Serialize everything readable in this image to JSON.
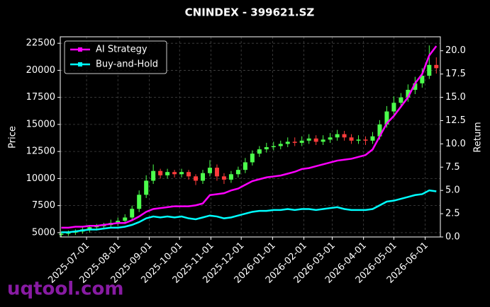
{
  "chart_data": {
    "type": "candlestick",
    "title": "CNINDEX - 399621.SZ",
    "ylabel": "Price",
    "y2label": "Return",
    "x": [
      "2025-06-06",
      "2025-06-13",
      "2025-06-20",
      "2025-06-27",
      "2025-07-04",
      "2025-07-11",
      "2025-07-18",
      "2025-07-25",
      "2025-08-01",
      "2025-08-08",
      "2025-08-15",
      "2025-08-22",
      "2025-08-29",
      "2025-09-05",
      "2025-09-12",
      "2025-09-19",
      "2025-09-26",
      "2025-10-03",
      "2025-10-10",
      "2025-10-17",
      "2025-10-24",
      "2025-10-31",
      "2025-11-07",
      "2025-11-14",
      "2025-11-21",
      "2025-11-28",
      "2025-12-05",
      "2025-12-12",
      "2025-12-19",
      "2025-12-26",
      "2026-01-02",
      "2026-01-09",
      "2026-01-16",
      "2026-01-23",
      "2026-01-30",
      "2026-02-06",
      "2026-02-13",
      "2026-02-20",
      "2026-02-27",
      "2026-03-06",
      "2026-03-13",
      "2026-03-20",
      "2026-03-27",
      "2026-04-03",
      "2026-04-10",
      "2026-04-17",
      "2026-04-24",
      "2026-05-01",
      "2026-05-08",
      "2026-05-15",
      "2026-05-22",
      "2026-05-29",
      "2026-06-05",
      "2026-06-12"
    ],
    "open": [
      4800,
      4900,
      5000,
      5100,
      5300,
      5500,
      5600,
      5700,
      5900,
      6100,
      6400,
      7200,
      8500,
      9800,
      10700,
      10300,
      10600,
      10400,
      10600,
      10200,
      9800,
      10500,
      11000,
      10200,
      9900,
      10400,
      10800,
      11500,
      12300,
      12700,
      12900,
      13000,
      13200,
      13400,
      13300,
      13500,
      13700,
      13400,
      13600,
      13800,
      14100,
      13800,
      13500,
      13600,
      13500,
      13900,
      15000,
      16200,
      17000,
      17500,
      18200,
      18800,
      19500,
      20500
    ],
    "high": [
      5100,
      5200,
      5300,
      5500,
      5700,
      5800,
      5900,
      6200,
      6400,
      6700,
      7500,
      8900,
      10300,
      11300,
      10900,
      10900,
      10800,
      10900,
      10800,
      10400,
      10800,
      11700,
      11300,
      10500,
      10700,
      11100,
      11900,
      12600,
      13000,
      13300,
      13400,
      13500,
      13800,
      13800,
      13900,
      14100,
      14000,
      14000,
      14200,
      14500,
      14400,
      14100,
      14000,
      13900,
      14300,
      15400,
      16700,
      17600,
      17900,
      18700,
      19400,
      20200,
      22300,
      21200
    ],
    "low": [
      4600,
      4700,
      4800,
      4900,
      5000,
      5200,
      5300,
      5400,
      5600,
      5800,
      6100,
      6900,
      8200,
      9500,
      10000,
      10000,
      10100,
      10100,
      9900,
      9400,
      9500,
      10200,
      9800,
      9500,
      9600,
      10100,
      10500,
      11200,
      12000,
      12400,
      12600,
      12700,
      12900,
      13000,
      13000,
      13200,
      13100,
      13100,
      13300,
      13500,
      13500,
      13200,
      13200,
      13100,
      13200,
      13600,
      14700,
      15900,
      16600,
      17100,
      17800,
      18400,
      19200,
      19700
    ],
    "close": [
      4900,
      5000,
      5100,
      5300,
      5500,
      5600,
      5700,
      5900,
      6100,
      6400,
      7200,
      8500,
      9800,
      10700,
      10300,
      10600,
      10400,
      10600,
      10200,
      9800,
      10500,
      11000,
      10200,
      9900,
      10400,
      10800,
      11500,
      12300,
      12700,
      12900,
      13000,
      13200,
      13400,
      13300,
      13500,
      13700,
      13400,
      13600,
      13800,
      14100,
      13800,
      13500,
      13600,
      13500,
      13900,
      15000,
      16200,
      17000,
      17500,
      18200,
      18800,
      19500,
      20500,
      20200
    ],
    "up_color": "#4cff4c",
    "down_color": "#ff3b3b",
    "series": [
      {
        "name": "AI Strategy",
        "color": "#ff00ff",
        "axis": "y2",
        "values": [
          1.0,
          1.0,
          1.1,
          1.1,
          1.2,
          1.2,
          1.3,
          1.4,
          1.5,
          1.5,
          1.8,
          2.2,
          2.7,
          3.0,
          3.1,
          3.2,
          3.3,
          3.3,
          3.3,
          3.4,
          3.6,
          4.5,
          4.6,
          4.7,
          5.0,
          5.2,
          5.6,
          6.0,
          6.2,
          6.4,
          6.5,
          6.6,
          6.8,
          7.0,
          7.3,
          7.4,
          7.6,
          7.8,
          8.0,
          8.2,
          8.3,
          8.4,
          8.6,
          8.8,
          9.4,
          10.8,
          12.2,
          13.0,
          14.0,
          15.0,
          16.5,
          17.5,
          19.5,
          20.5
        ]
      },
      {
        "name": "Buy-and-Hold",
        "color": "#00ffff",
        "axis": "y2",
        "values": [
          0.5,
          0.5,
          0.6,
          0.7,
          0.8,
          0.8,
          0.9,
          1.0,
          1.0,
          1.1,
          1.3,
          1.6,
          2.0,
          2.2,
          2.1,
          2.2,
          2.1,
          2.2,
          2.0,
          1.9,
          2.1,
          2.3,
          2.2,
          2.0,
          2.1,
          2.3,
          2.5,
          2.7,
          2.8,
          2.8,
          2.9,
          2.9,
          3.0,
          2.9,
          3.0,
          3.0,
          2.9,
          3.0,
          3.1,
          3.2,
          3.0,
          2.9,
          2.9,
          2.9,
          3.0,
          3.4,
          3.8,
          3.9,
          4.1,
          4.3,
          4.5,
          4.6,
          5.0,
          4.9
        ]
      }
    ],
    "xlim": [
      "2025-06-05",
      "2026-06-16"
    ],
    "xticks": [
      "2025-07-01",
      "2025-08-01",
      "2025-09-01",
      "2025-10-01",
      "2025-11-01",
      "2025-12-01",
      "2026-01-01",
      "2026-02-01",
      "2026-03-01",
      "2026-04-01",
      "2026-05-01",
      "2026-06-01"
    ],
    "ylim": [
      4600,
      23100
    ],
    "yticks": [
      5000,
      7500,
      10000,
      12500,
      15000,
      17500,
      20000,
      22500
    ],
    "y2lim": [
      0,
      21.5
    ],
    "y2ticks": [
      {
        "value": 0,
        "label": "0.0"
      },
      2.5,
      {
        "value": 5,
        "label": "5.0"
      },
      7.5,
      {
        "value": 10,
        "label": "10.0"
      },
      12.5,
      {
        "value": 15,
        "label": "15.0"
      },
      17.5,
      {
        "value": 20,
        "label": "20.0"
      }
    ],
    "grid": true,
    "legend": "upper left"
  },
  "watermark": "uqtool.com"
}
